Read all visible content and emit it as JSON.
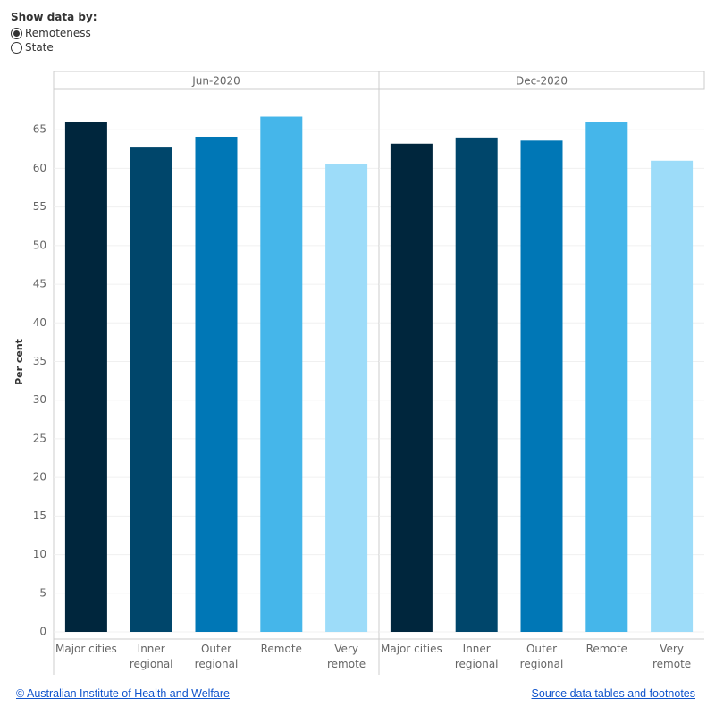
{
  "controls": {
    "label": "Show data by:",
    "options": [
      "Remoteness",
      "State"
    ],
    "selected": 0
  },
  "chart_data": [
    {
      "type": "bar",
      "title": "Jun-2020",
      "y_label": "Per cent",
      "categories": [
        "Major cities",
        "Inner regional",
        "Outer regional",
        "Remote",
        "Very remote"
      ],
      "values": [
        66.0,
        62.7,
        64.1,
        66.7,
        60.6
      ],
      "colors": [
        "#00263d",
        "#00466b",
        "#0077b6",
        "#45b6ea",
        "#9ddcf9"
      ],
      "ylim": [
        0,
        70
      ],
      "yticks": [
        0,
        5,
        10,
        15,
        20,
        25,
        30,
        35,
        40,
        45,
        50,
        55,
        60,
        65
      ],
      "grid": true
    },
    {
      "type": "bar",
      "title": "Dec-2020",
      "categories": [
        "Major cities",
        "Inner regional",
        "Outer regional",
        "Remote",
        "Very remote"
      ],
      "values": [
        63.2,
        64.0,
        63.6,
        66.0,
        61.0
      ],
      "colors": [
        "#00263d",
        "#00466b",
        "#0077b6",
        "#45b6ea",
        "#9ddcf9"
      ],
      "ylim": [
        0,
        70
      ],
      "yticks": [
        0,
        5,
        10,
        15,
        20,
        25,
        30,
        35,
        40,
        45,
        50,
        55,
        60,
        65
      ],
      "grid": true
    }
  ],
  "footer": {
    "left": "© Australian Institute of Health and Welfare",
    "right": "Source data tables and footnotes"
  }
}
